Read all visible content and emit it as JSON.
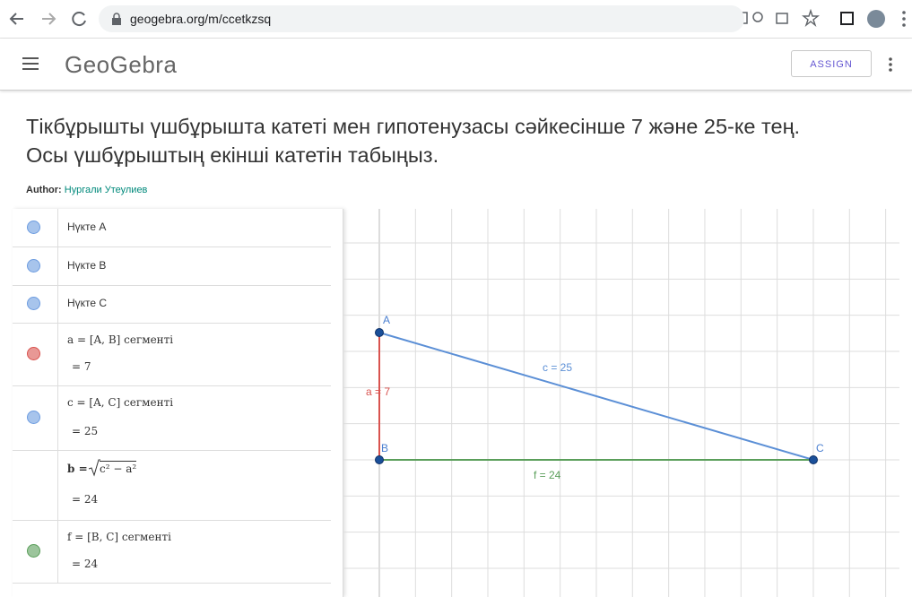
{
  "browser": {
    "url": "geogebra.org/m/ccetkzsq"
  },
  "header": {
    "logo": "GeoGebra",
    "button": "ASSIGN"
  },
  "title_lines": [
    "Тікбұрышты үшбұрышта катеті мен гипотенузасы сәйкесінше 7 және 25-ке тең.",
    "Осы үшбұрыштың екінші катетін табыңыз."
  ],
  "author": {
    "label": "Author:",
    "name": "Нургали Утеулиев"
  },
  "algebra": [
    {
      "label": "Нүкте A",
      "color": "#6d9ce0"
    },
    {
      "label": "Нүкте B",
      "color": "#6d9ce0"
    },
    {
      "label": "Нүкте C",
      "color": "#6d9ce0"
    },
    {
      "label": "a = [A, B] сегменті",
      "value": "= 7",
      "color": "#d9534f"
    },
    {
      "label": "c = [A, C] сегменті",
      "value": "= 25",
      "color": "#6d9ce0"
    },
    {
      "lhs": "b =",
      "radicand": "c² − a²",
      "value": "= 24"
    },
    {
      "label": "f = [B, C] сегменті",
      "value": "= 24",
      "color": "#5a9e5a"
    }
  ],
  "graphics": {
    "points": [
      "A",
      "B",
      "C"
    ],
    "segments": [
      {
        "label": "a = 7",
        "color": "#d9534f"
      },
      {
        "label": "c = 25",
        "color": "#5b8fd6"
      },
      {
        "label": "f = 24",
        "color": "#5a9e5a"
      }
    ]
  }
}
